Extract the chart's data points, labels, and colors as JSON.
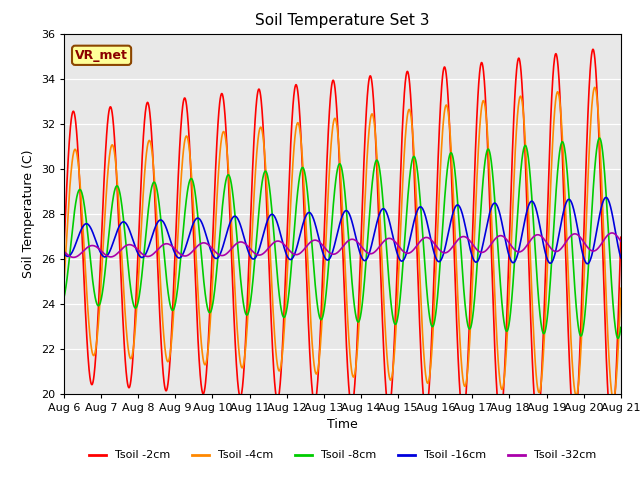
{
  "title": "Soil Temperature Set 3",
  "xlabel": "Time",
  "ylabel": "Soil Temperature (C)",
  "ylim": [
    20,
    36
  ],
  "xlim": [
    0,
    15
  ],
  "plot_bg_color": "#e8e8e8",
  "fig_bg_color": "#ffffff",
  "annotation": "VR_met",
  "series": [
    {
      "label": "Tsoil -2cm",
      "color": "#ff0000",
      "base": 26.5,
      "amp_start": 6.0,
      "amp_end": 8.5,
      "phase": 0.0,
      "min_mod": 1.0
    },
    {
      "label": "Tsoil -4cm",
      "color": "#ff8800",
      "base": 26.3,
      "amp_start": 4.5,
      "amp_end": 7.0,
      "phase": 0.3,
      "min_mod": 0.8
    },
    {
      "label": "Tsoil -8cm",
      "color": "#00cc00",
      "base": 26.5,
      "amp_start": 2.5,
      "amp_end": 4.5,
      "phase": 1.1,
      "min_mod": 0.5
    },
    {
      "label": "Tsoil -16cm",
      "color": "#0000dd",
      "base": 26.8,
      "amp_start": 0.7,
      "amp_end": 1.5,
      "phase": 2.2,
      "min_mod": 0.1
    },
    {
      "label": "Tsoil -32cm",
      "color": "#aa00aa",
      "base": 26.3,
      "amp_start": 0.25,
      "amp_end": 0.4,
      "phase": 3.2,
      "min_mod": 0.05
    }
  ],
  "yticks": [
    20,
    22,
    24,
    26,
    28,
    30,
    32,
    34,
    36
  ],
  "xtick_labels": [
    "Aug 6",
    "Aug 7",
    "Aug 8",
    "Aug 9",
    "Aug 10",
    "Aug 11",
    "Aug 12",
    "Aug 13",
    "Aug 14",
    "Aug 15",
    "Aug 16",
    "Aug 17",
    "Aug 18",
    "Aug 19",
    "Aug 20",
    "Aug 21"
  ],
  "xtick_positions": [
    0,
    1,
    2,
    3,
    4,
    5,
    6,
    7,
    8,
    9,
    10,
    11,
    12,
    13,
    14,
    15
  ],
  "grid_color": "#ffffff",
  "linewidth": 1.2
}
